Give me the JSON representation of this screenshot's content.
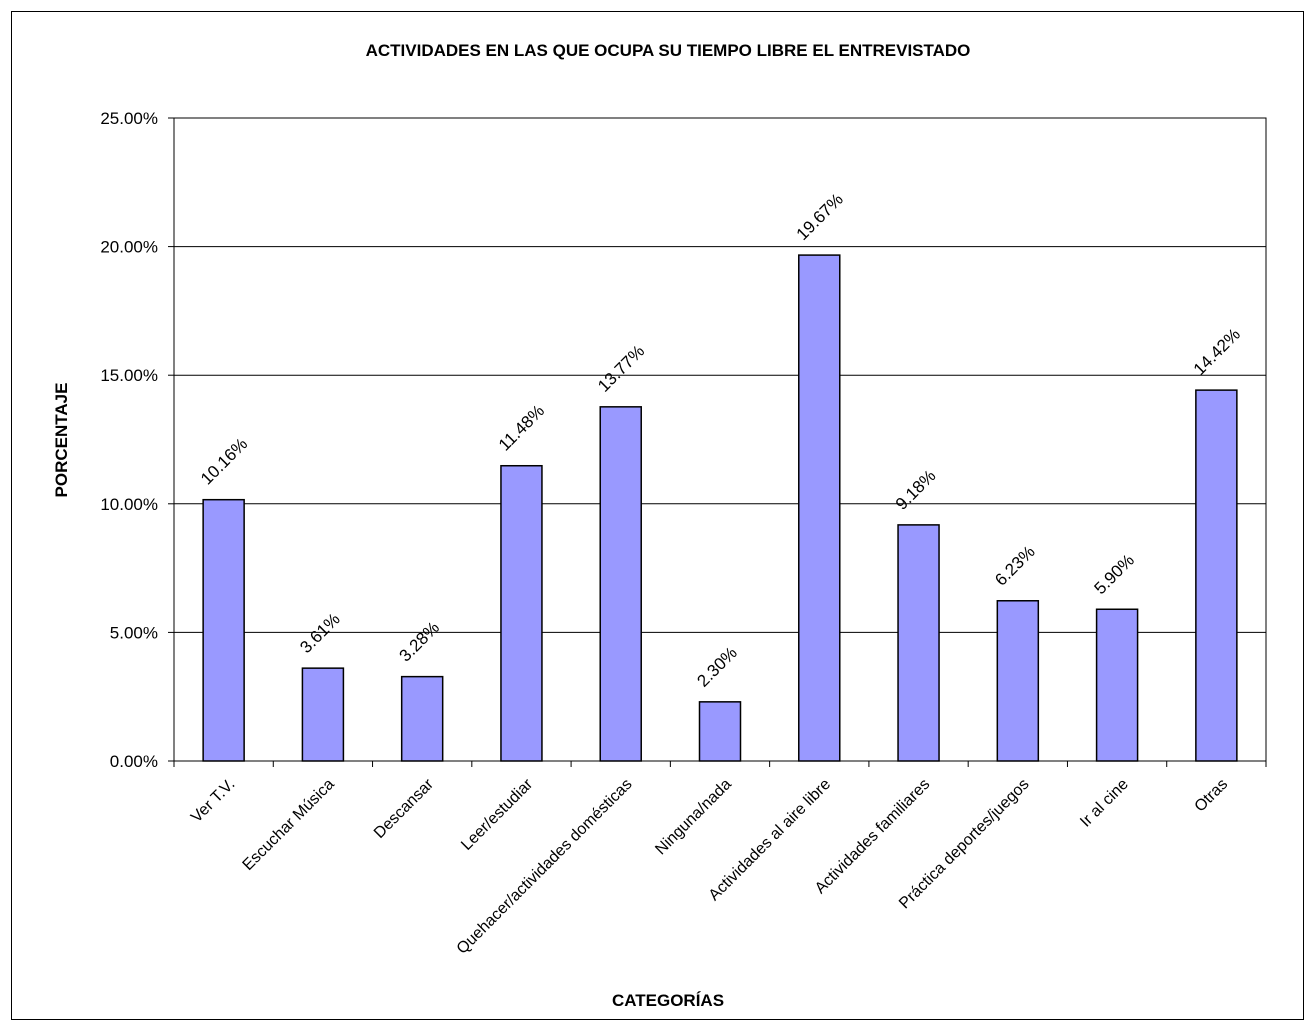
{
  "chart_data": {
    "type": "bar",
    "title": "ACTIVIDADES EN LAS QUE OCUPA SU TIEMPO LIBRE EL ENTREVISTADO",
    "xlabel": "CATEGORÍAS",
    "ylabel": "PORCENTAJE",
    "categories": [
      "Ver T.V.",
      "Escuchar Música",
      "Descansar",
      "Leer/estudiar",
      "Quehacer/actividades domésticas",
      "Ninguna/nada",
      "Actividades al aire libre",
      "Actividades familiares",
      "Práctica deportes/juegos",
      "Ir al cine",
      "Otras"
    ],
    "values": [
      10.16,
      3.61,
      3.28,
      11.48,
      13.77,
      2.3,
      19.67,
      9.18,
      6.23,
      5.9,
      14.42
    ],
    "value_labels": [
      "10.16%",
      "3.61%",
      "3.28%",
      "11.48%",
      "13.77%",
      "2.30%",
      "19.67%",
      "9.18%",
      "6.23%",
      "5.90%",
      "14.42%"
    ],
    "ylim": [
      0,
      25
    ],
    "yticks": [
      0,
      5,
      10,
      15,
      20,
      25
    ],
    "ytick_labels": [
      "0.00%",
      "5.00%",
      "10.00%",
      "15.00%",
      "20.00%",
      "25.00%"
    ],
    "grid": true,
    "legend": "none",
    "bar_color": "#9999ff",
    "bar_stroke": "#000000"
  }
}
